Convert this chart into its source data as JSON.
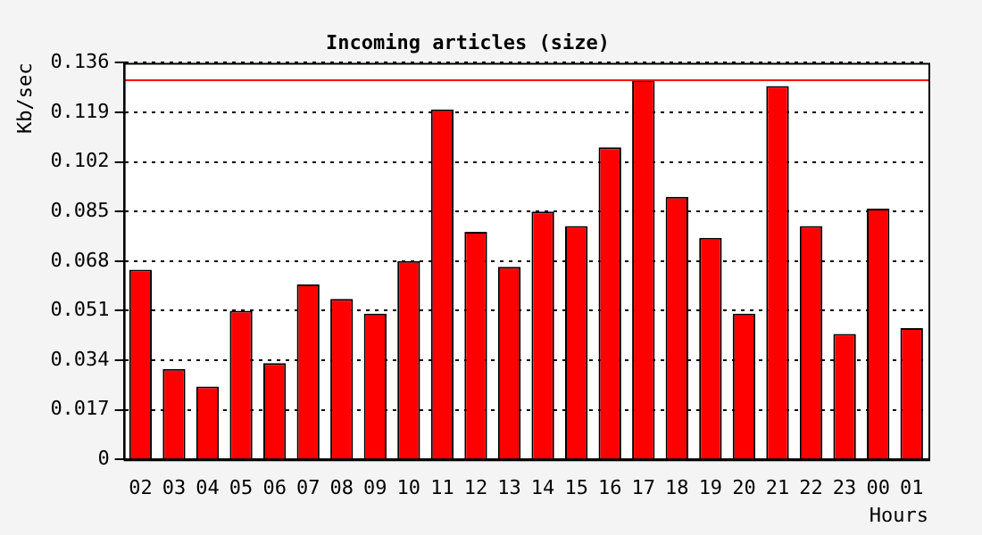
{
  "chart_data": {
    "type": "bar",
    "title": "Incoming articles (size)",
    "ylabel": "Kb/sec",
    "xlabel": "Hours",
    "categories": [
      "02",
      "03",
      "04",
      "05",
      "06",
      "07",
      "08",
      "09",
      "10",
      "11",
      "12",
      "13",
      "14",
      "15",
      "16",
      "17",
      "18",
      "19",
      "20",
      "21",
      "22",
      "23",
      "00",
      "01"
    ],
    "series": [
      {
        "color": "#ff0000",
        "values": [
          0.065,
          0.031,
          0.025,
          0.051,
          0.033,
          0.06,
          0.055,
          0.05,
          0.068,
          0.12,
          0.078,
          0.066,
          0.085,
          0.08,
          0.107,
          0.13,
          0.09,
          0.076,
          0.05,
          0.128,
          0.08,
          0.043,
          0.086,
          0.045
        ]
      }
    ],
    "ylim": [
      0,
      0.136
    ],
    "yticks": [
      0,
      0.017,
      0.034,
      0.051,
      0.068,
      0.085,
      0.102,
      0.119,
      0.136
    ],
    "ref_lines": [
      {
        "axis": "y",
        "value": 0.13,
        "color": "#ff0000"
      }
    ],
    "grid": "y",
    "legend": false
  }
}
